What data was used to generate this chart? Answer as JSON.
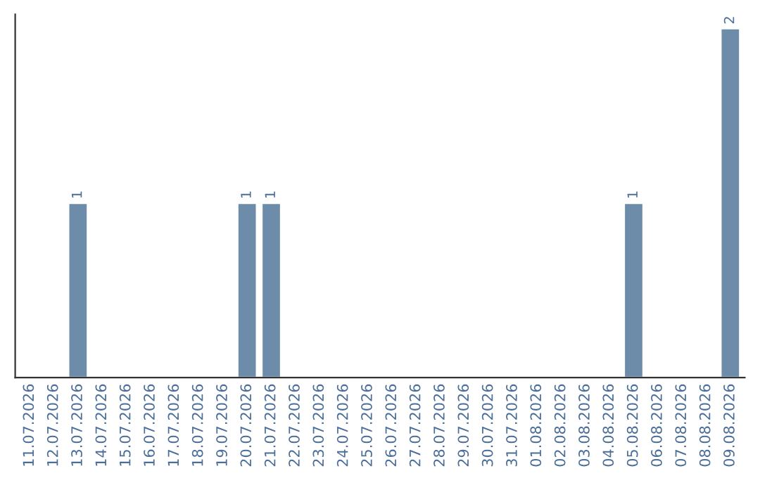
{
  "chart_data": {
    "type": "bar",
    "categories": [
      "11.07.2026",
      "12.07.2026",
      "13.07.2026",
      "14.07.2026",
      "15.07.2026",
      "16.07.2026",
      "17.07.2026",
      "18.07.2026",
      "19.07.2026",
      "20.07.2026",
      "21.07.2026",
      "22.07.2026",
      "23.07.2026",
      "24.07.2026",
      "25.07.2026",
      "26.07.2026",
      "27.07.2026",
      "28.07.2026",
      "29.07.2026",
      "30.07.2026",
      "31.07.2026",
      "01.08.2026",
      "02.08.2026",
      "03.08.2026",
      "04.08.2026",
      "05.08.2026",
      "06.08.2026",
      "07.08.2026",
      "08.08.2026",
      "09.08.2026"
    ],
    "values": [
      0,
      0,
      1,
      0,
      0,
      0,
      0,
      0,
      0,
      1,
      1,
      0,
      0,
      0,
      0,
      0,
      0,
      0,
      0,
      0,
      0,
      0,
      0,
      0,
      0,
      1,
      0,
      0,
      0,
      2
    ],
    "value_labels": [
      null,
      null,
      "1",
      null,
      null,
      null,
      null,
      null,
      null,
      "1",
      "1",
      null,
      null,
      null,
      null,
      null,
      null,
      null,
      null,
      null,
      null,
      null,
      null,
      null,
      null,
      "1",
      null,
      null,
      null,
      "2"
    ],
    "color": "#6d8ca9",
    "tick_labels": "x",
    "grid": false,
    "legend": false
  }
}
